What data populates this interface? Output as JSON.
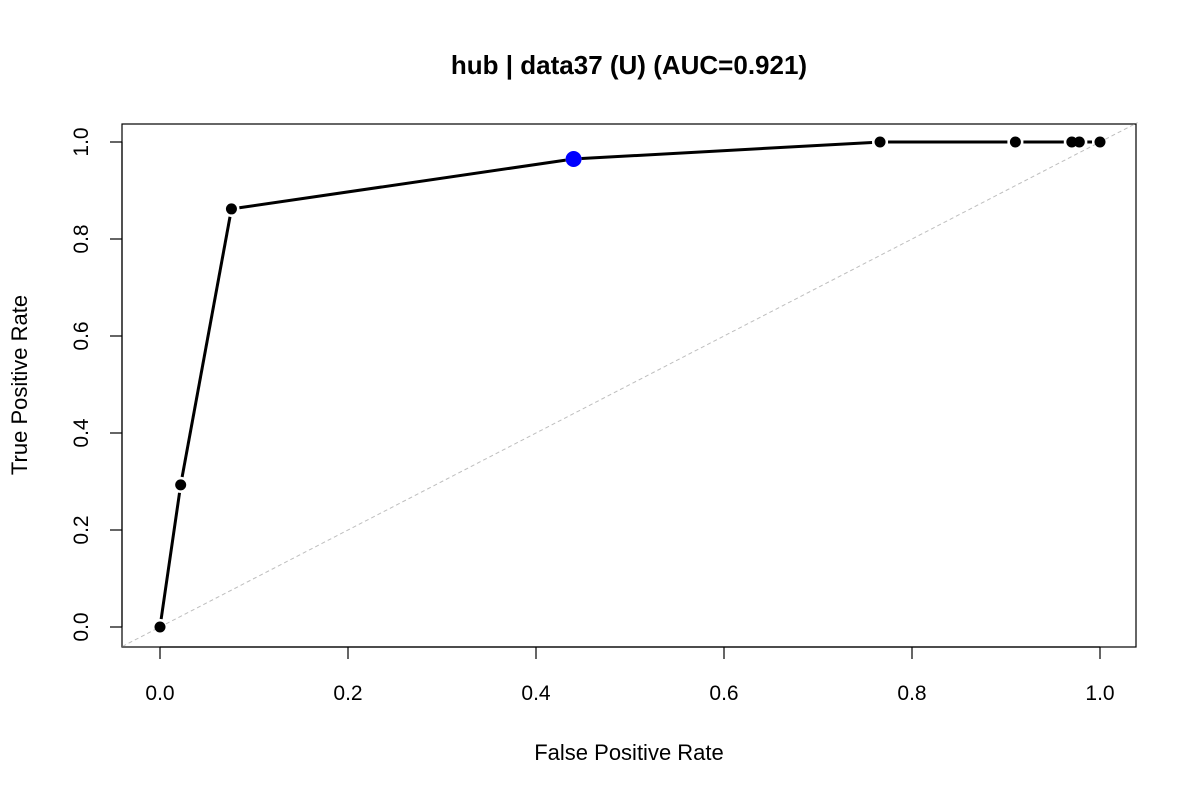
{
  "chart_data": {
    "type": "line",
    "title": "hub | data37 (U) (AUC=0.921)",
    "xlabel": "False Positive Rate",
    "ylabel": "True Positive Rate",
    "xlim": [
      0,
      1
    ],
    "ylim": [
      0,
      1
    ],
    "x_ticks": [
      "0.0",
      "0.2",
      "0.4",
      "0.6",
      "0.8",
      "1.0"
    ],
    "y_ticks": [
      "0.0",
      "0.2",
      "0.4",
      "0.6",
      "0.8",
      "1.0"
    ],
    "grid": false,
    "legend": "none",
    "auc": 0.921,
    "series": [
      {
        "x": [
          0.0,
          0.022,
          0.076,
          0.44,
          0.766,
          0.91,
          0.97,
          0.978,
          1.0
        ],
        "y": [
          0.0,
          0.293,
          0.862,
          0.965,
          1.0,
          1.0,
          1.0,
          1.0,
          1.0
        ],
        "color": "#000000"
      }
    ],
    "highlight_point": {
      "x": 0.44,
      "y": 0.965,
      "color": "#0000ff"
    },
    "reference_line": {
      "x": [
        0,
        1
      ],
      "y": [
        0,
        1
      ],
      "color": "#bebebe",
      "style": "dashed"
    }
  }
}
